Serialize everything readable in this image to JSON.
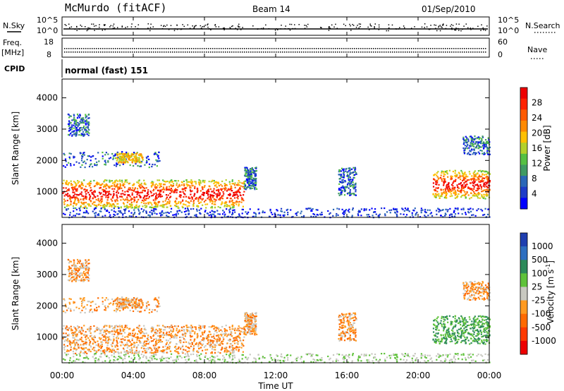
{
  "header": {
    "station": "McMurdo (fitACF)",
    "beam": "Beam 14",
    "date": "01/Sep/2010"
  },
  "sky_panel": {
    "left_label": "N.Sky",
    "right_label": "N.Search",
    "left_ticks": [
      "10^5",
      "10^0"
    ],
    "right_ticks": [
      "10^5",
      "10^0"
    ]
  },
  "freq_panel": {
    "left_label_1": "Freq.",
    "left_label_2": "[MHz]",
    "right_label": "Nave",
    "left_ticks": [
      "18",
      "8"
    ],
    "right_ticks": [
      "60",
      "0"
    ]
  },
  "cpid": {
    "label": "CPID",
    "value": "normal (fast) 151"
  },
  "chart_data": [
    {
      "type": "heatmap",
      "name": "power",
      "ylabel": "Slant Range [km]",
      "ylim": [
        180,
        4600
      ],
      "yticks": [
        "1000",
        "2000",
        "3000",
        "4000"
      ],
      "xlabel": "Time UT",
      "xticks": [
        "00:00",
        "04:00",
        "08:00",
        "12:00",
        "16:00",
        "20:00",
        "00:00"
      ],
      "colorbar": {
        "label": "Power [dB]",
        "ticks": [
          "4",
          "8",
          "12",
          "16",
          "20",
          "24",
          "28"
        ],
        "colors": [
          "#0000ff",
          "#1e3cc8",
          "#2a67b8",
          "#3f9a63",
          "#55c043",
          "#b3d02b",
          "#ffc000",
          "#ff8a00",
          "#ff5a00",
          "#ff2200",
          "#ee0000"
        ]
      }
    },
    {
      "type": "heatmap",
      "name": "velocity",
      "ylabel": "Slant Range [km]",
      "ylim": [
        180,
        4600
      ],
      "yticks": [
        "1000",
        "2000",
        "3000",
        "4000"
      ],
      "xlabel": "Time UT",
      "xticks": [
        "00:00",
        "04:00",
        "08:00",
        "12:00",
        "16:00",
        "20:00",
        "00:00"
      ],
      "colorbar": {
        "label_main": "Velocity ",
        "label_unit": "[m s",
        "label_exp": "-1",
        "label_end": "]",
        "ticks": [
          "1000",
          "500",
          "100",
          "25",
          "-25",
          "-100",
          "-500",
          "-1000"
        ],
        "colors": [
          "#1f3fb0",
          "#2e6fc0",
          "#2d8a5a",
          "#5fc23a",
          "#c8c8c0",
          "#ff9a20",
          "#ff6a00",
          "#ff3a00",
          "#ee0000"
        ]
      }
    }
  ]
}
